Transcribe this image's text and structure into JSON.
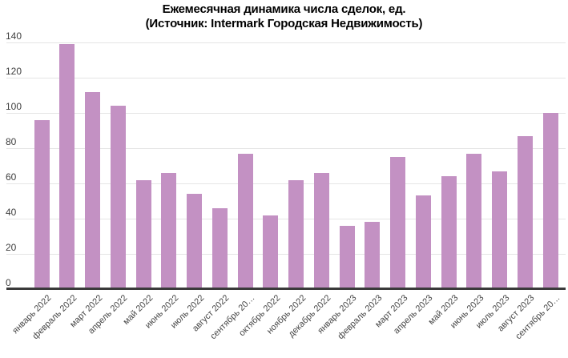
{
  "title": {
    "line1": "Ежемесячная динамика числа сделок, ед.",
    "line2": "(Источник: Intermark Городская Недвижимость)"
  },
  "chart_data": {
    "type": "bar",
    "title": "Ежемесячная динамика числа сделок, ед. (Источник: Intermark Городская Недвижимость)",
    "categories": [
      "январь 2022",
      "февраль 2022",
      "март 2022",
      "апрель 2022",
      "май 2022",
      "июнь 2022",
      "июль 2022",
      "август 2022",
      "сентябрь 20…",
      "октябрь 2022",
      "ноябрь 2022",
      "декабрь 2022",
      "январь 2023",
      "февраль 2023",
      "март 2023",
      "апрель 2023",
      "май 2023",
      "июнь 2023",
      "июль 2023",
      "август 2023",
      "сентябрь 20…"
    ],
    "values": [
      96,
      139,
      112,
      104,
      62,
      66,
      54,
      46,
      77,
      42,
      62,
      66,
      36,
      38,
      75,
      53,
      64,
      77,
      67,
      87,
      100
    ],
    "xlabel": "",
    "ylabel": "",
    "ylim": [
      0,
      140
    ],
    "yticks": [
      0,
      20,
      40,
      60,
      80,
      100,
      120,
      140
    ],
    "grid": "horizontal",
    "legend_position": "none",
    "bar_color": "#c391c3",
    "gridline_color": "#e5e5e5",
    "axis_line_color": "#3a3a3a",
    "tick_label_color": "#474747"
  }
}
